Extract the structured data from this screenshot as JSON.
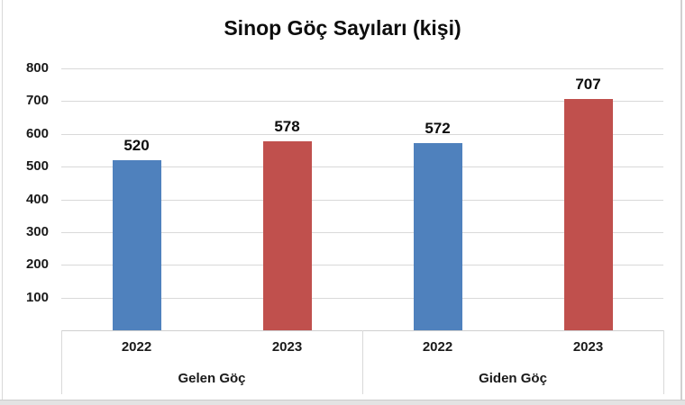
{
  "window": {
    "bottom_strip_color": "#e3e3e3",
    "edge_color": "#d9d9d9"
  },
  "chart_data": {
    "type": "bar",
    "title": "Sinop Göç Sayıları (kişi)",
    "ylim": [
      0,
      800
    ],
    "yticks": [
      100,
      200,
      300,
      400,
      500,
      600,
      700,
      800
    ],
    "grid": true,
    "legend": "none",
    "xlabel": "",
    "ylabel": "",
    "group_categories": [
      "Gelen Göç",
      "Giden Göç"
    ],
    "year_categories": [
      "2022",
      "2023"
    ],
    "groups": [
      {
        "label": "Gelen Göç",
        "bars": [
          {
            "year": "2022",
            "value": 520,
            "color": "#4F81BD"
          },
          {
            "year": "2023",
            "value": 578,
            "color": "#C0504D"
          }
        ]
      },
      {
        "label": "Giden Göç",
        "bars": [
          {
            "year": "2022",
            "value": 572,
            "color": "#4F81BD"
          },
          {
            "year": "2023",
            "value": 707,
            "color": "#C0504D"
          }
        ]
      }
    ],
    "colors": {
      "series_2022": "#4F81BD",
      "series_2023": "#C0504D",
      "gridline": "#D9D9D9",
      "text": "#1A1A1A"
    }
  }
}
